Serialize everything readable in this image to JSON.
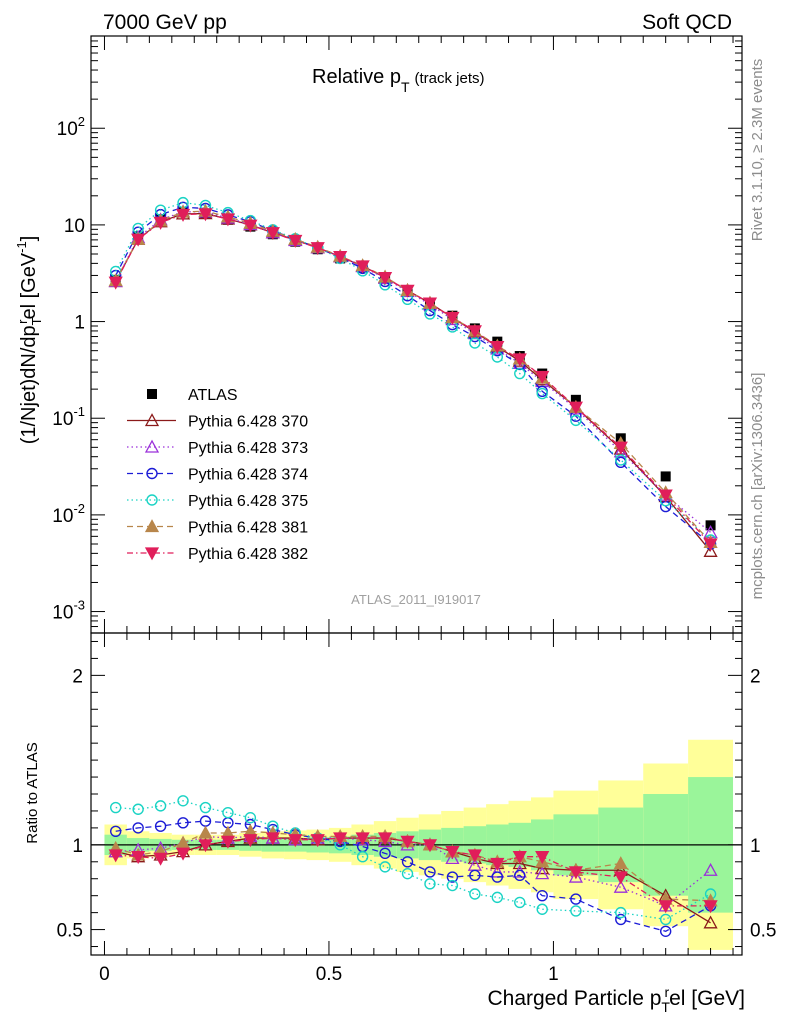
{
  "header": {
    "left": "7000 GeV pp",
    "right": "Soft QCD"
  },
  "side": {
    "rivet": "Rivet 3.1.10, ≥ 2.3M events",
    "mcplots": "mcplots.cern.ch [arXiv:1306.3436]"
  },
  "chart_data": [
    {
      "type": "scatter",
      "title_main": "Relative p",
      "title_sub": "T",
      "title_note": "(track jets)",
      "ylabel": "(1/Njet)dN/dp",
      "ylabel_sub": "T",
      "ylabel_sup": "r",
      "ylabel_tail": "el [GeV",
      "ylabel_exp": "-1",
      "ylabel_end": "]",
      "yscale": "log",
      "ylim": [
        0.0006,
        900
      ],
      "xlim": [
        -0.03,
        1.42
      ],
      "ytick_labels": [
        {
          "base": "10",
          "exp": "-3",
          "value": 0.001
        },
        {
          "base": "10",
          "exp": "-2",
          "value": 0.01
        },
        {
          "base": "10",
          "exp": "-1",
          "value": 0.1
        },
        {
          "base": "1",
          "exp": "",
          "value": 1
        },
        {
          "base": "10",
          "exp": "",
          "value": 10
        },
        {
          "base": "10",
          "exp": "2",
          "value": 100
        }
      ],
      "watermark": "ATLAS_2011_I919017",
      "x": [
        0.025,
        0.075,
        0.125,
        0.175,
        0.225,
        0.275,
        0.325,
        0.375,
        0.425,
        0.475,
        0.525,
        0.575,
        0.625,
        0.675,
        0.725,
        0.775,
        0.825,
        0.875,
        0.925,
        0.975,
        1.05,
        1.15,
        1.25,
        1.35
      ],
      "series": [
        {
          "name": "ATLAS",
          "color": "#000000",
          "marker": "square",
          "dash": "none",
          "values": [
            2.7,
            7.6,
            11.5,
            13.5,
            13.0,
            11.3,
            9.6,
            8.0,
            6.7,
            5.6,
            4.5,
            3.6,
            2.75,
            2.05,
            1.55,
            1.15,
            0.85,
            0.62,
            0.44,
            0.29,
            0.155,
            0.062,
            0.025,
            0.0078
          ]
        },
        {
          "name": "Pythia 6.428 370",
          "color": "#8b1a1a",
          "marker": "triangle-open",
          "dash": "none",
          "values": [
            2.6,
            7.1,
            10.8,
            13.0,
            13.1,
            11.5,
            10.0,
            8.3,
            7.0,
            5.8,
            4.7,
            3.75,
            2.85,
            2.1,
            1.55,
            1.1,
            0.78,
            0.55,
            0.39,
            0.25,
            0.13,
            0.048,
            0.0155,
            0.0042
          ]
        },
        {
          "name": "Pythia 6.428 373",
          "color": "#9b30d9",
          "marker": "triangle-open",
          "dash": "1.5,3",
          "values": [
            2.6,
            7.4,
            11.3,
            13.7,
            13.6,
            11.8,
            10.1,
            8.3,
            6.9,
            5.8,
            4.7,
            3.7,
            2.8,
            2.05,
            1.5,
            1.05,
            0.75,
            0.52,
            0.37,
            0.24,
            0.125,
            0.045,
            0.016,
            0.0066
          ]
        },
        {
          "name": "Pythia 6.428 374",
          "color": "#1c1cd6",
          "marker": "circle-open",
          "dash": "6,4",
          "values": [
            3.0,
            8.4,
            12.8,
            15.2,
            14.8,
            12.7,
            10.8,
            8.7,
            7.1,
            5.8,
            4.6,
            3.55,
            2.6,
            1.85,
            1.3,
            0.93,
            0.7,
            0.5,
            0.36,
            0.19,
            0.105,
            0.035,
            0.0122,
            0.005
          ]
        },
        {
          "name": "Pythia 6.428 375",
          "color": "#1ad3c4",
          "marker": "circle-open",
          "dash": "1.5,3",
          "values": [
            3.3,
            9.2,
            14.2,
            17.0,
            15.9,
            13.4,
            11.1,
            8.9,
            7.2,
            5.8,
            4.5,
            3.35,
            2.4,
            1.7,
            1.2,
            0.88,
            0.6,
            0.43,
            0.29,
            0.18,
            0.095,
            0.037,
            0.014,
            0.0055
          ]
        },
        {
          "name": "Pythia 6.428 381",
          "color": "#b8864b",
          "marker": "triangle-filled",
          "dash": "6,4",
          "values": [
            2.65,
            7.1,
            11.0,
            13.6,
            13.9,
            12.1,
            10.4,
            8.6,
            7.1,
            5.9,
            4.75,
            3.8,
            2.9,
            2.1,
            1.55,
            1.1,
            0.8,
            0.56,
            0.41,
            0.26,
            0.13,
            0.055,
            0.017,
            0.0052
          ]
        },
        {
          "name": "Pythia 6.428 382",
          "color": "#e01e5a",
          "marker": "triangle-down-filled",
          "dash": "6,3,1.5,3",
          "values": [
            2.55,
            7.1,
            10.6,
            12.8,
            13.0,
            11.5,
            9.9,
            8.3,
            6.9,
            5.8,
            4.7,
            3.75,
            2.85,
            2.1,
            1.55,
            1.1,
            0.8,
            0.55,
            0.41,
            0.27,
            0.13,
            0.05,
            0.016,
            0.005
          ]
        }
      ]
    },
    {
      "type": "scatter",
      "ylabel": "Ratio to ATLAS",
      "xlabel": "Charged Particle p",
      "xlabel_sub": "T",
      "xlabel_sup": "r",
      "xlabel_tail": "el [GeV]",
      "ylim": [
        0.35,
        2.25
      ],
      "xlim": [
        -0.03,
        1.42
      ],
      "ytick_labels": [
        "0.5",
        "1",
        "2"
      ],
      "xtick_labels": [
        "0",
        "0.5",
        "1"
      ],
      "band_edges": [
        0,
        0.05,
        0.1,
        0.15,
        0.2,
        0.25,
        0.3,
        0.35,
        0.4,
        0.45,
        0.5,
        0.55,
        0.6,
        0.65,
        0.7,
        0.75,
        0.8,
        0.85,
        0.9,
        0.95,
        1.0,
        1.1,
        1.2,
        1.3,
        1.4
      ],
      "band_inner": [
        0.06,
        0.04,
        0.035,
        0.03,
        0.03,
        0.03,
        0.035,
        0.04,
        0.04,
        0.045,
        0.05,
        0.06,
        0.07,
        0.08,
        0.09,
        0.1,
        0.11,
        0.12,
        0.13,
        0.15,
        0.18,
        0.22,
        0.3,
        0.4
      ],
      "band_outer": [
        0.12,
        0.08,
        0.07,
        0.06,
        0.06,
        0.06,
        0.07,
        0.08,
        0.085,
        0.09,
        0.1,
        0.12,
        0.14,
        0.16,
        0.18,
        0.2,
        0.22,
        0.24,
        0.26,
        0.28,
        0.32,
        0.38,
        0.48,
        0.62
      ],
      "band_colors": {
        "inner": "#9af59a",
        "outer": "#ffff99"
      },
      "reference_line": 1.0,
      "series": [
        {
          "name": "Pythia 6.428 370",
          "values": [
            0.96,
            0.93,
            0.94,
            0.96,
            1.0,
            1.02,
            1.04,
            1.04,
            1.04,
            1.03,
            1.04,
            1.04,
            1.04,
            1.02,
            1.0,
            0.96,
            0.92,
            0.89,
            0.89,
            0.86,
            0.85,
            0.85,
            0.7,
            0.54
          ]
        },
        {
          "name": "Pythia 6.428 373",
          "values": [
            0.96,
            0.97,
            0.98,
            1.01,
            1.05,
            1.04,
            1.05,
            1.04,
            1.03,
            1.04,
            1.04,
            1.03,
            1.02,
            1.0,
            1.0,
            0.92,
            0.88,
            0.84,
            0.84,
            0.83,
            0.81,
            0.75,
            0.64,
            0.85
          ]
        },
        {
          "name": "Pythia 6.428 374",
          "values": [
            1.08,
            1.1,
            1.11,
            1.13,
            1.14,
            1.13,
            1.12,
            1.09,
            1.06,
            1.04,
            1.02,
            0.99,
            0.95,
            0.9,
            0.84,
            0.81,
            0.82,
            0.81,
            0.82,
            0.7,
            0.68,
            0.56,
            0.49,
            0.64
          ]
        },
        {
          "name": "Pythia 6.428 375",
          "values": [
            1.22,
            1.21,
            1.23,
            1.26,
            1.22,
            1.19,
            1.16,
            1.11,
            1.07,
            1.04,
            1.0,
            0.93,
            0.87,
            0.83,
            0.77,
            0.76,
            0.71,
            0.69,
            0.66,
            0.62,
            0.61,
            0.6,
            0.56,
            0.71
          ]
        },
        {
          "name": "Pythia 6.428 381",
          "values": [
            0.98,
            0.94,
            0.96,
            1.01,
            1.07,
            1.07,
            1.08,
            1.07,
            1.06,
            1.05,
            1.05,
            1.05,
            1.05,
            1.02,
            1.0,
            0.96,
            0.94,
            0.9,
            0.93,
            0.9,
            0.85,
            0.89,
            0.68,
            0.67
          ]
        },
        {
          "name": "Pythia 6.428 382",
          "values": [
            0.94,
            0.93,
            0.92,
            0.95,
            1.0,
            1.02,
            1.03,
            1.04,
            1.03,
            1.03,
            1.04,
            1.04,
            1.04,
            1.02,
            1.0,
            0.96,
            0.94,
            0.89,
            0.93,
            0.93,
            0.84,
            0.81,
            0.64,
            0.64
          ]
        }
      ]
    }
  ]
}
